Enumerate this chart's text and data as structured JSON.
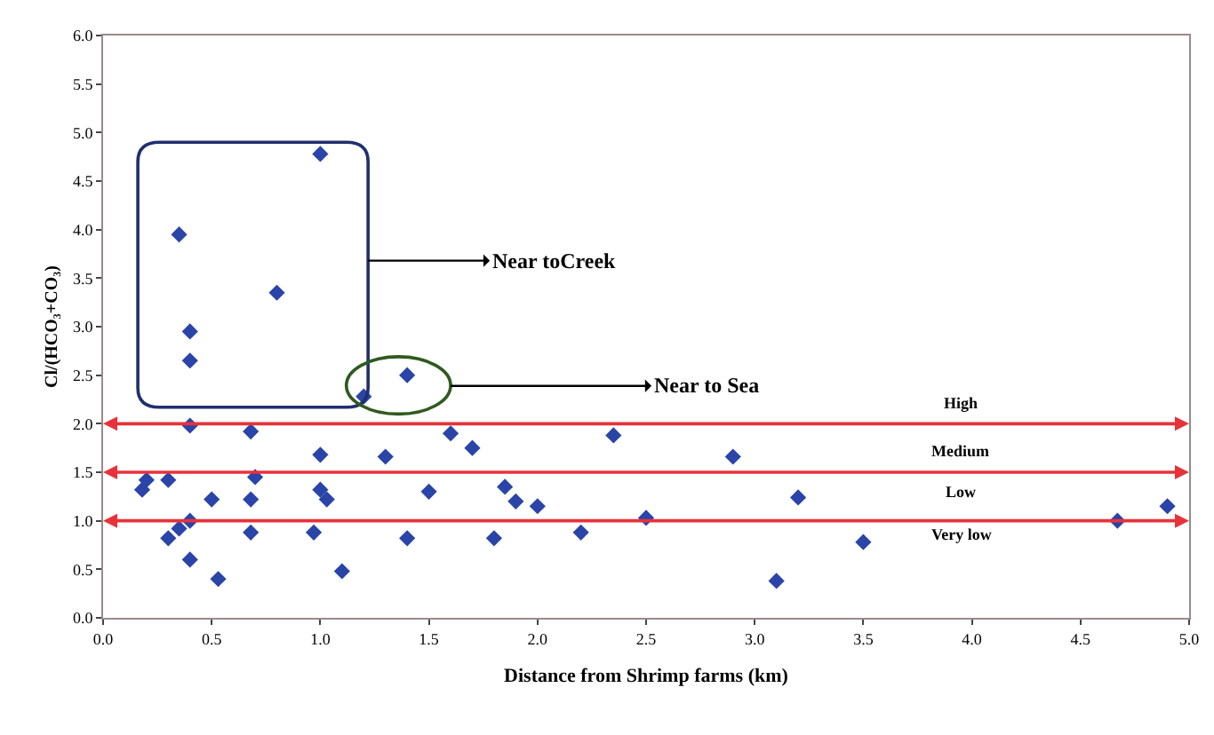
{
  "chart_data": {
    "type": "scatter",
    "xlabel": "Distance from Shrimp farms (km)",
    "ylabel": "Cl/(HCO₃+CO₃)",
    "xlim": [
      0,
      5
    ],
    "ylim": [
      0,
      6
    ],
    "xticks": [
      {
        "value": 0,
        "label": "0.0"
      },
      {
        "value": 0.5,
        "label": "0.5"
      },
      {
        "value": 1,
        "label": "1.0"
      },
      {
        "value": 1.5,
        "label": "1.5"
      },
      {
        "value": 2,
        "label": "2.0"
      },
      {
        "value": 2.5,
        "label": "2.5"
      },
      {
        "value": 3,
        "label": "3.0"
      },
      {
        "value": 3.5,
        "label": "3.5"
      },
      {
        "value": 4,
        "label": "4.0"
      },
      {
        "value": 4.5,
        "label": "4.5"
      },
      {
        "value": 5,
        "label": "5.0"
      }
    ],
    "yticks": [
      {
        "value": 0,
        "label": "0.0"
      },
      {
        "value": 0.5,
        "label": "0.5"
      },
      {
        "value": 1,
        "label": "1.0"
      },
      {
        "value": 1.5,
        "label": "1.5"
      },
      {
        "value": 2,
        "label": "2.0"
      },
      {
        "value": 2.5,
        "label": "2.5"
      },
      {
        "value": 3,
        "label": "3.0"
      },
      {
        "value": 3.5,
        "label": "3.5"
      },
      {
        "value": 4,
        "label": "4.0"
      },
      {
        "value": 4.5,
        "label": "4.5"
      },
      {
        "value": 5,
        "label": "5.0"
      },
      {
        "value": 5.5,
        "label": "5.5"
      },
      {
        "value": 6,
        "label": "6.0"
      }
    ],
    "grid": false,
    "legend": false,
    "marker": "diamond",
    "series": [
      {
        "color": "#2a44a8",
        "x": [
          0.18,
          0.2,
          0.3,
          0.3,
          0.35,
          0.4,
          0.4,
          0.4,
          0.5,
          0.53,
          0.68,
          0.68,
          0.68,
          0.7,
          0.97,
          1.0,
          1.0,
          1.03,
          1.1,
          1.2,
          1.3,
          1.4,
          1.4,
          1.5,
          1.6,
          1.7,
          1.8,
          1.85,
          1.9,
          2.0,
          2.2,
          2.35,
          2.5,
          2.9,
          3.1,
          3.2,
          3.5,
          4.67,
          4.9,
          0.35,
          0.4,
          0.4,
          0.8,
          1.0
        ],
        "values": [
          1.32,
          1.42,
          1.42,
          0.82,
          0.92,
          1.0,
          0.6,
          1.98,
          1.22,
          0.4,
          1.92,
          1.22,
          0.88,
          1.45,
          0.88,
          1.68,
          1.32,
          1.22,
          0.48,
          2.28,
          1.66,
          2.5,
          0.82,
          1.3,
          1.9,
          1.75,
          0.82,
          1.35,
          1.2,
          1.15,
          0.88,
          1.88,
          1.03,
          1.66,
          0.38,
          1.24,
          0.78,
          1.0,
          1.15,
          3.95,
          2.95,
          2.65,
          3.35,
          4.78
        ]
      }
    ],
    "ref_lines": [
      {
        "axis": "y",
        "value": 2.0,
        "color": "#e8323a"
      },
      {
        "axis": "y",
        "value": 1.5,
        "color": "#e8323a"
      },
      {
        "axis": "y",
        "value": 1.0,
        "color": "#e8323a"
      }
    ],
    "annotations": [
      "Near toCreek",
      "Near to Sea",
      "High",
      "Medium",
      "Low",
      "Very low"
    ]
  }
}
